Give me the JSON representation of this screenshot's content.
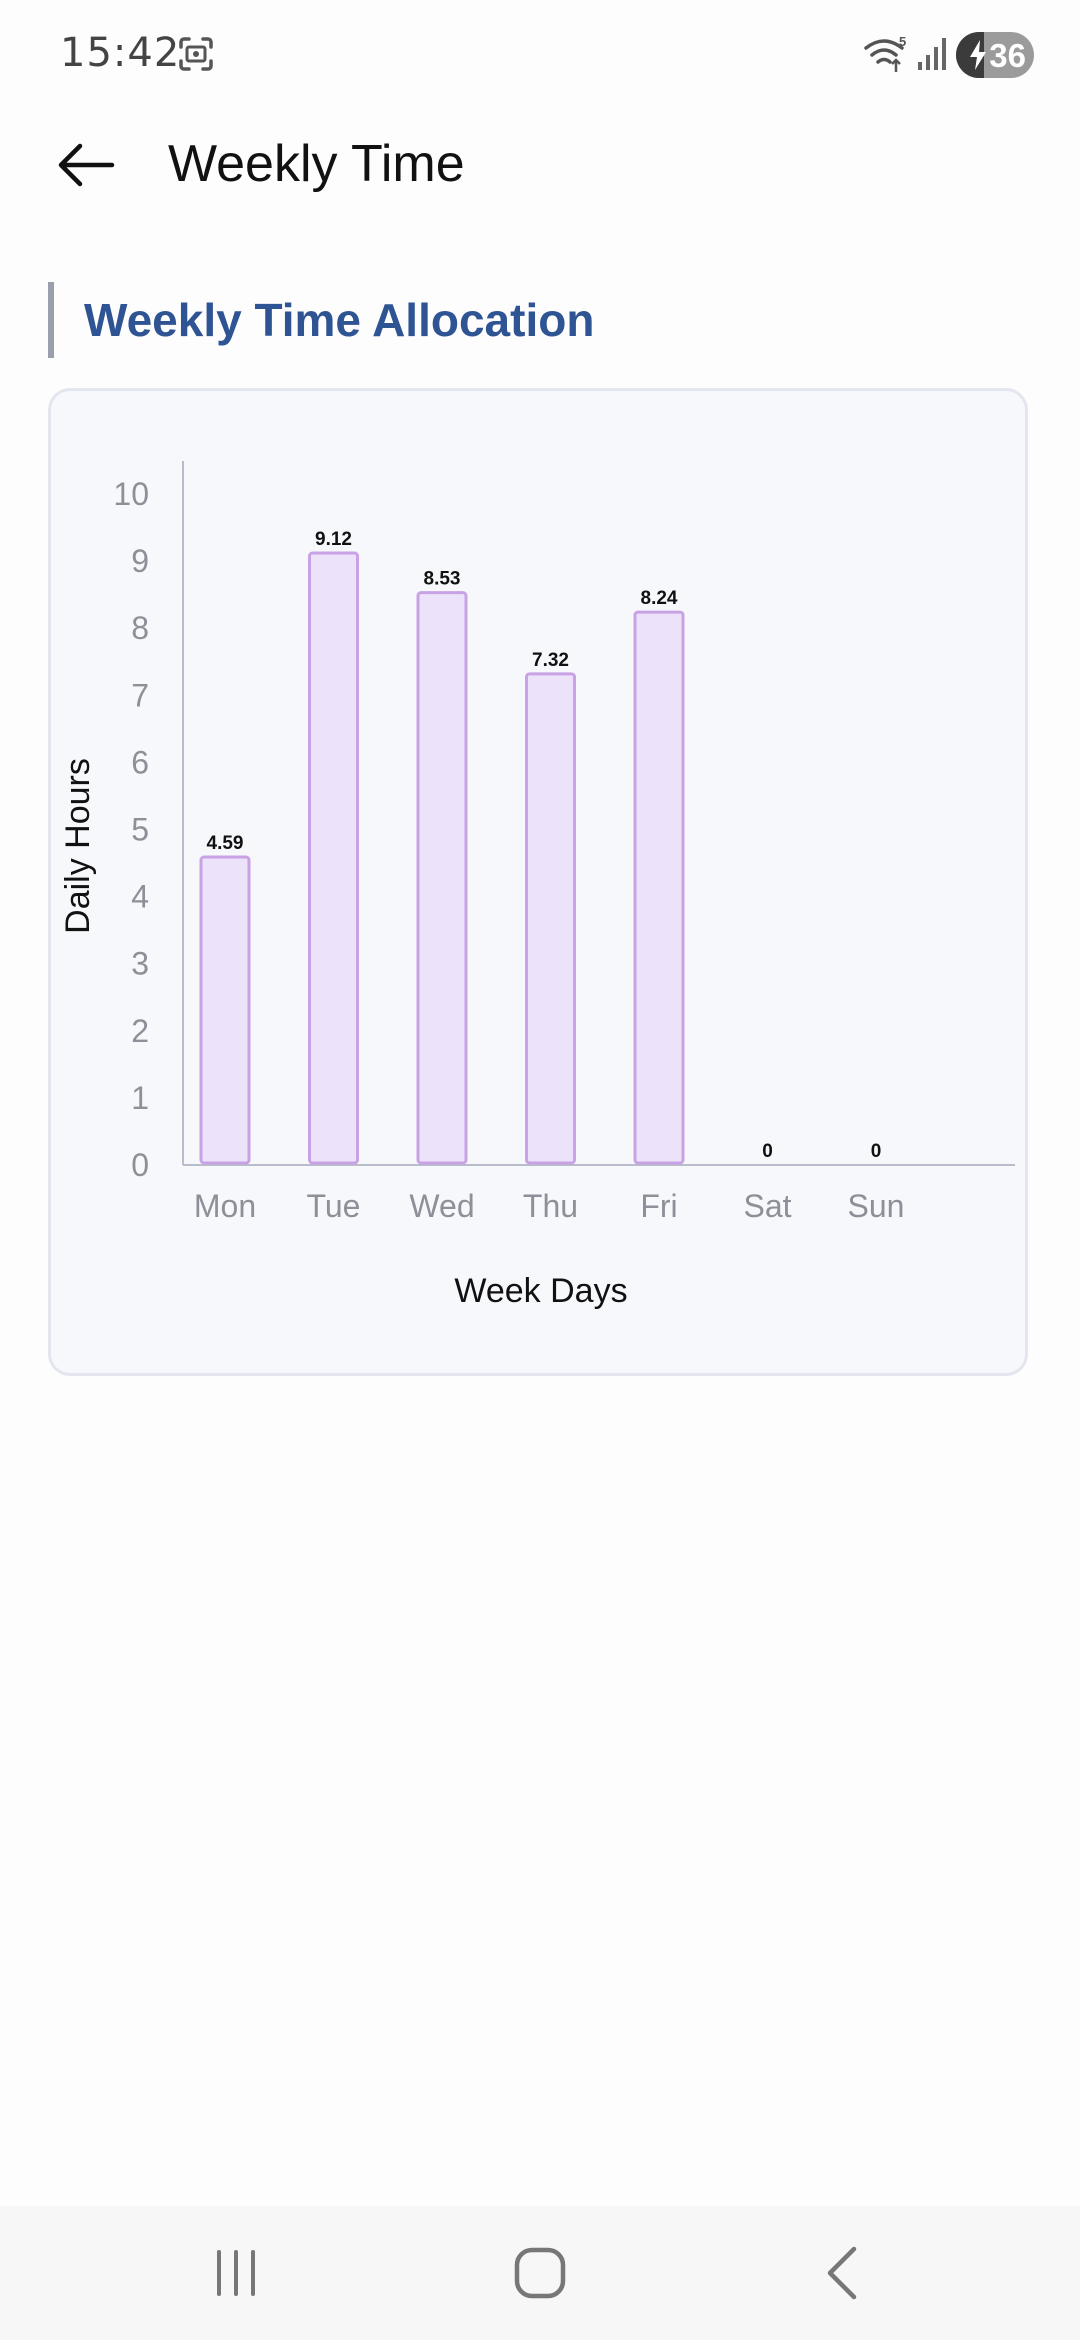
{
  "status_bar": {
    "time": "15:42",
    "battery_level": "36",
    "icons": [
      "screenshot-icon",
      "wifi-icon",
      "signal-icon",
      "battery-charging-icon"
    ]
  },
  "app_bar": {
    "title": "Weekly Time",
    "back_icon": "arrow-left-icon"
  },
  "section": {
    "title": "Weekly Time Allocation"
  },
  "colors": {
    "accent": "#2f5494",
    "bar_fill": "#ece3fb",
    "bar_stroke": "#c9a2e6",
    "axis": "#b9bccb",
    "tick_text": "#8f8f99"
  },
  "chart_data": {
    "type": "bar",
    "title": "",
    "xlabel": "Week Days",
    "ylabel": "Daily Hours",
    "categories": [
      "Mon",
      "Tue",
      "Wed",
      "Thu",
      "Fri",
      "Sat",
      "Sun"
    ],
    "values": [
      4.59,
      9.12,
      8.53,
      7.32,
      8.24,
      0,
      0
    ],
    "data_labels": [
      "4.59",
      "9.12",
      "8.53",
      "7.32",
      "8.24",
      "0",
      "0"
    ],
    "ylim": [
      0,
      10
    ],
    "yticks": [
      "0",
      "1",
      "2",
      "3",
      "4",
      "5",
      "6",
      "7",
      "8",
      "9",
      "10"
    ],
    "grid": false,
    "legend": "none"
  },
  "nav_bar": {
    "icons": [
      "recent-apps-icon",
      "home-icon",
      "back-icon"
    ]
  }
}
